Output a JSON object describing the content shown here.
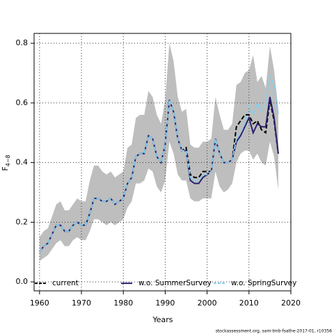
{
  "chart_data": {
    "type": "line",
    "xlabel": "Years",
    "ylabel": {
      "main": "F",
      "subscript": "4−8"
    },
    "footnote": "stockassessment.org, sam-tmb-fsathe-2017-01, r10356",
    "x": [
      1960,
      1961,
      1962,
      1963,
      1964,
      1965,
      1966,
      1967,
      1968,
      1969,
      1970,
      1971,
      1972,
      1973,
      1974,
      1975,
      1976,
      1977,
      1978,
      1979,
      1980,
      1981,
      1982,
      1983,
      1984,
      1985,
      1986,
      1987,
      1988,
      1989,
      1990,
      1991,
      1992,
      1993,
      1994,
      1995,
      1996,
      1997,
      1998,
      1999,
      2000,
      2001,
      2002,
      2003,
      2004,
      2005,
      2006,
      2007,
      2008,
      2009,
      2010,
      2011,
      2012,
      2013,
      2014,
      2015,
      2016,
      2017
    ],
    "band": {
      "color": "#bebebe",
      "lower": [
        0.07,
        0.08,
        0.09,
        0.11,
        0.13,
        0.14,
        0.12,
        0.12,
        0.14,
        0.15,
        0.14,
        0.14,
        0.17,
        0.21,
        0.21,
        0.2,
        0.19,
        0.2,
        0.19,
        0.2,
        0.21,
        0.25,
        0.27,
        0.33,
        0.33,
        0.34,
        0.38,
        0.37,
        0.32,
        0.3,
        0.34,
        0.47,
        0.43,
        0.36,
        0.34,
        0.34,
        0.28,
        0.27,
        0.27,
        0.28,
        0.28,
        0.28,
        0.37,
        0.32,
        0.3,
        0.31,
        0.33,
        0.4,
        0.43,
        0.44,
        0.44,
        0.41,
        0.43,
        0.4,
        0.39,
        0.47,
        0.42,
        0.31
      ],
      "upper": [
        0.15,
        0.17,
        0.18,
        0.22,
        0.26,
        0.27,
        0.24,
        0.24,
        0.26,
        0.28,
        0.27,
        0.27,
        0.34,
        0.39,
        0.39,
        0.37,
        0.36,
        0.37,
        0.35,
        0.36,
        0.37,
        0.45,
        0.46,
        0.55,
        0.56,
        0.56,
        0.64,
        0.62,
        0.56,
        0.53,
        0.61,
        0.8,
        0.74,
        0.62,
        0.57,
        0.58,
        0.46,
        0.45,
        0.45,
        0.47,
        0.47,
        0.48,
        0.62,
        0.56,
        0.51,
        0.51,
        0.53,
        0.66,
        0.67,
        0.7,
        0.71,
        0.76,
        0.67,
        0.69,
        0.65,
        0.79,
        0.71,
        0.58
      ]
    },
    "series": [
      {
        "name": "current",
        "color": "#000000",
        "dash": true,
        "values": [
          0.1,
          0.12,
          0.13,
          0.16,
          0.19,
          0.19,
          0.17,
          0.17,
          0.19,
          0.2,
          0.19,
          0.19,
          0.23,
          0.28,
          0.28,
          0.27,
          0.27,
          0.28,
          0.26,
          0.27,
          0.28,
          0.33,
          0.35,
          0.42,
          0.43,
          0.43,
          0.49,
          0.48,
          0.42,
          0.4,
          0.46,
          0.61,
          0.57,
          0.48,
          0.44,
          0.45,
          0.36,
          0.35,
          0.35,
          0.37,
          0.37,
          0.37,
          0.48,
          0.43,
          0.4,
          0.4,
          0.41,
          0.52,
          0.54,
          0.56,
          0.56,
          0.53,
          0.54,
          0.51,
          0.5,
          0.61,
          0.54,
          0.43
        ]
      },
      {
        "name": "w.o. SummerSurvey",
        "color": "#2a1f6e",
        "dash": false,
        "values": [
          0.1,
          0.12,
          0.13,
          0.16,
          0.19,
          0.19,
          0.17,
          0.17,
          0.19,
          0.2,
          0.19,
          0.19,
          0.23,
          0.28,
          0.28,
          0.27,
          0.27,
          0.28,
          0.26,
          0.27,
          0.28,
          0.33,
          0.35,
          0.42,
          0.43,
          0.43,
          0.49,
          0.48,
          0.42,
          0.4,
          0.46,
          0.61,
          0.57,
          0.48,
          0.44,
          0.44,
          0.34,
          0.33,
          0.33,
          0.35,
          0.36,
          0.37,
          0.48,
          0.43,
          0.4,
          0.4,
          0.41,
          0.47,
          0.49,
          0.52,
          0.55,
          0.5,
          0.53,
          0.52,
          0.52,
          0.62,
          0.55,
          0.43
        ]
      },
      {
        "name": "w.o. SpringSurvey",
        "color": "#87ceeb",
        "dash": true,
        "values": [
          0.1,
          0.12,
          0.13,
          0.16,
          0.19,
          0.19,
          0.17,
          0.17,
          0.19,
          0.2,
          0.19,
          0.19,
          0.23,
          0.28,
          0.28,
          0.27,
          0.27,
          0.28,
          0.26,
          0.27,
          0.28,
          0.33,
          0.35,
          0.42,
          0.43,
          0.43,
          0.49,
          0.48,
          0.42,
          0.4,
          0.46,
          0.61,
          0.57,
          0.48,
          0.44,
          0.44,
          0.35,
          0.34,
          0.34,
          0.36,
          0.36,
          0.37,
          0.48,
          0.43,
          0.4,
          0.4,
          0.41,
          0.48,
          0.5,
          0.53,
          0.59,
          0.56,
          0.6,
          0.57,
          0.6,
          0.69,
          0.66,
          0.56
        ]
      }
    ],
    "xlim": [
      1958.7,
      2020
    ],
    "xticks": [
      1960,
      1970,
      1980,
      1990,
      2000,
      2010,
      2020
    ],
    "ylim": [
      -0.03,
      0.833
    ],
    "yticks": [
      {
        "value": 0,
        "label": "0.0"
      },
      {
        "value": 0.2,
        "label": "0.2"
      },
      {
        "value": 0.4,
        "label": "0.4"
      },
      {
        "value": 0.6,
        "label": "0.6"
      },
      {
        "value": 0.8,
        "label": "0.8"
      }
    ],
    "grid": true,
    "legend": "bottom"
  }
}
